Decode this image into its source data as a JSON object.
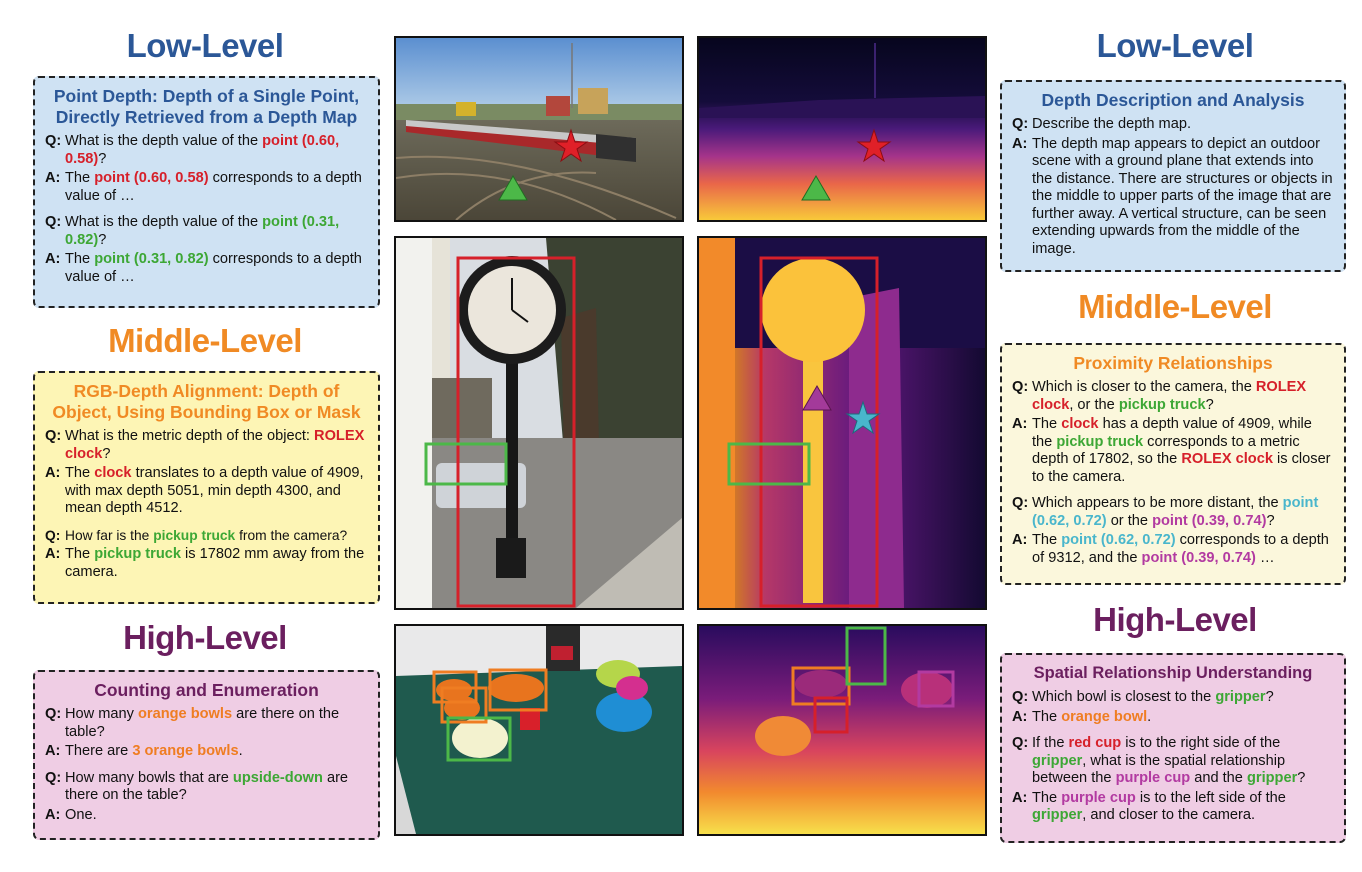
{
  "left": {
    "low_header": "Low-Level",
    "low_card": {
      "title": "Point Depth: Depth of a Single Point, Directly Retrieved from a Depth Map",
      "q1": [
        "What is the depth value of the ",
        "point (0.60, 0.58)",
        "?"
      ],
      "a1": [
        "The ",
        "point (0.60, 0.58)",
        " corresponds to a depth value of …"
      ],
      "q2": [
        "What is the depth value of the ",
        "point (0.31, 0.82)",
        "?"
      ],
      "a2": [
        "The ",
        "point (0.31, 0.82)",
        " corresponds to a depth value of …"
      ]
    },
    "mid_header": "Middle-Level",
    "mid_card": {
      "title": "RGB-Depth Alignment: Depth of Object, Using Bounding Box or Mask",
      "q1": [
        "What is the metric depth of the object: ",
        "ROLEX clock",
        "?"
      ],
      "a1": [
        "The ",
        "clock",
        " translates to a depth value of 4909, with max depth 5051, min depth 4300, and mean depth 4512."
      ],
      "q2": [
        "How far is the ",
        "pickup truck",
        " from the camera?"
      ],
      "a2": [
        "The ",
        "pickup truck",
        " is 17802 mm away from the camera."
      ]
    },
    "high_header": "High-Level",
    "high_card": {
      "title": "Counting and Enumeration",
      "q1": [
        "How many ",
        "orange bowls",
        " are there on the table?"
      ],
      "a1": [
        "There are ",
        "3 orange bowls",
        "."
      ],
      "q2": [
        "How many bowls that are ",
        "upside-down",
        " are there on the table?"
      ],
      "a2": [
        "One.",
        "",
        ""
      ]
    }
  },
  "right": {
    "low_header": "Low-Level",
    "low_card": {
      "title": "Depth Description and Analysis",
      "q1": [
        "Describe the depth map.",
        "",
        ""
      ],
      "a1": [
        "The depth map appears to depict an outdoor scene with a ground plane that extends into the distance. There are structures or objects in the middle to upper parts of the image that are further away. A vertical structure, can be seen extending upwards from the middle of the image.",
        "",
        ""
      ]
    },
    "mid_header": "Middle-Level",
    "mid_card": {
      "title": "Proximity Relationships",
      "q1": [
        "Which is closer to the camera, the ",
        "ROLEX clock",
        ", or the ",
        "pickup truck",
        "?"
      ],
      "a1": [
        "The ",
        "clock",
        " has a depth value of 4909, while the ",
        "pickup truck",
        " corresponds to a metric depth of 17802, so the ",
        "ROLEX clock",
        " is closer to the camera."
      ],
      "q2": [
        "Which appears to be more distant, the ",
        "point (0.62, 0.72)",
        " or the ",
        "point (0.39, 0.74)",
        "?"
      ],
      "a2": [
        "The ",
        "point (0.62, 0.72)",
        " corresponds to a depth of 9312, and the ",
        "point (0.39, 0.74)",
        " …"
      ]
    },
    "high_header": "High-Level",
    "high_card": {
      "title": "Spatial Relationship Understanding",
      "q1": [
        "Which bowl is closest to the ",
        "gripper",
        "?"
      ],
      "a1": [
        "The ",
        "orange bowl",
        "."
      ],
      "q2": [
        "If the ",
        "red cup",
        " is to the right side of the ",
        "gripper",
        ", what is the spatial relationship between the ",
        "purple cup",
        " and the ",
        "gripper",
        "?"
      ],
      "a2": [
        "The ",
        "purple cup",
        " is to the left side of the ",
        "gripper",
        ", and closer to the camera."
      ]
    }
  },
  "labels": {
    "q": "Q:",
    "a": "A:"
  },
  "colors": {
    "low": "#2b5797",
    "mid": "#f08a24",
    "high": "#6b1f5f",
    "low_bg": "#cfe2f3",
    "mid_bg": "#fdf5b5",
    "high_bg": "#efcde4",
    "red": "#d6202a",
    "green": "#3da735",
    "orange": "#ef7d22",
    "cyan": "#49b6cc",
    "purple": "#b23aa1"
  }
}
